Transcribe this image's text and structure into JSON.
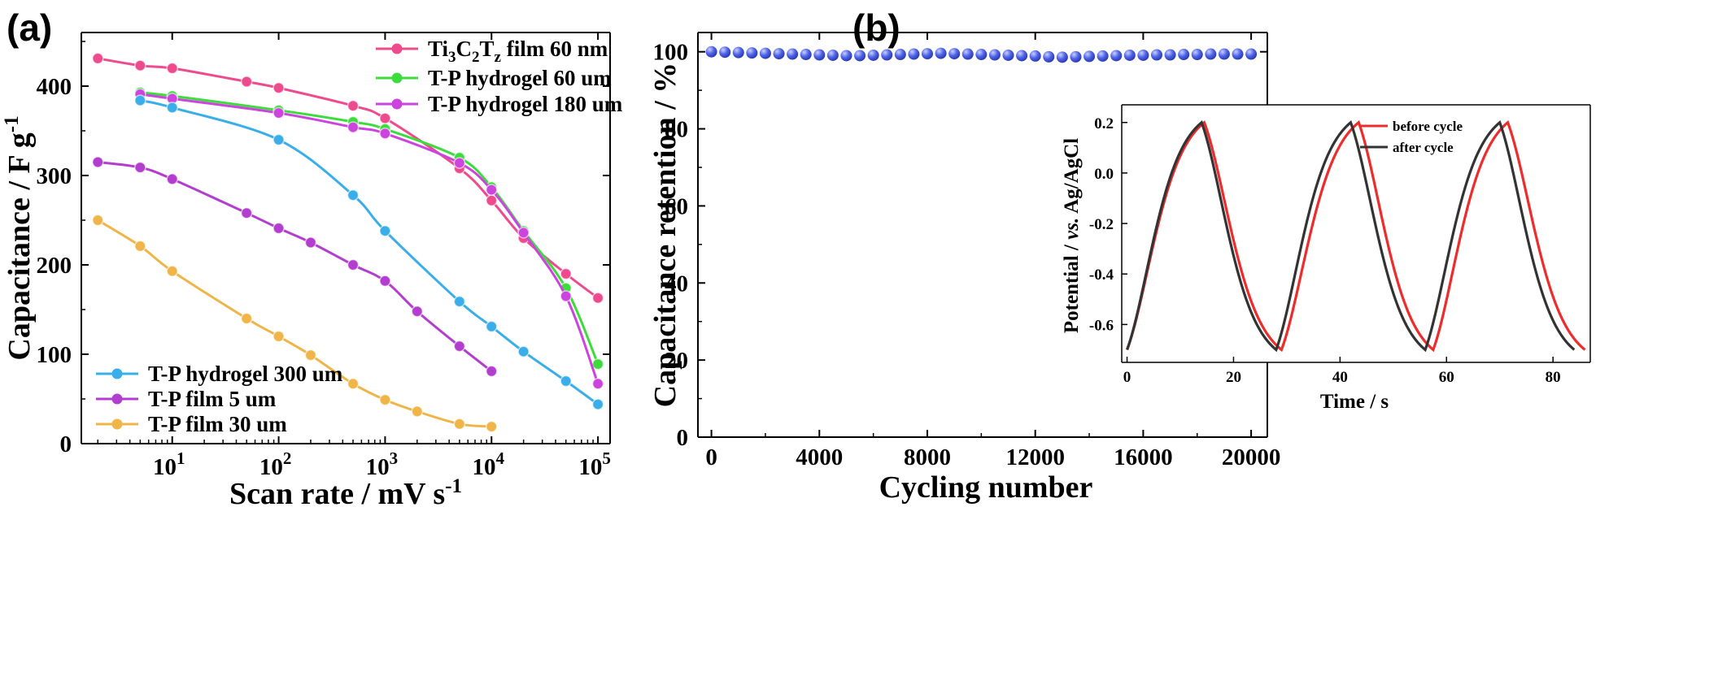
{
  "panels": {
    "a": {
      "label": "(a)"
    },
    "b": {
      "label": "(b)"
    }
  },
  "chart_data": [
    {
      "id": "a",
      "type": "line",
      "xscale": "log",
      "xlim": [
        1.4,
        130000
      ],
      "ylim": [
        0,
        460
      ],
      "xlabel": "Scan rate / mV s-1",
      "ylabel": "Capacitance / F g-1",
      "xtick_labels": [
        "10^1",
        "10^2",
        "10^3",
        "10^4",
        "10^5"
      ],
      "yticks": [
        0,
        100,
        200,
        300,
        400
      ],
      "series": [
        {
          "name": "Ti3C2Tz film 60 nm",
          "color": "#ee4b8e",
          "x": [
            2,
            5,
            10,
            50,
            100,
            500,
            1000,
            5000,
            10000,
            20000,
            50000,
            100000
          ],
          "y": [
            431,
            423,
            420,
            405,
            398,
            378,
            364,
            308,
            272,
            230,
            190,
            163
          ]
        },
        {
          "name": "T-P hydrogel 60 um",
          "color": "#3ddc3d",
          "x": [
            5,
            10,
            100,
            500,
            1000,
            5000,
            10000,
            20000,
            50000,
            100000
          ],
          "y": [
            393,
            389,
            373,
            360,
            352,
            320,
            287,
            238,
            174,
            89
          ]
        },
        {
          "name": "T-P hydrogel 180 um",
          "color": "#cc44dd",
          "x": [
            5,
            10,
            100,
            500,
            1000,
            5000,
            10000,
            20000,
            50000,
            100000
          ],
          "y": [
            391,
            386,
            370,
            354,
            347,
            314,
            284,
            236,
            165,
            67
          ]
        },
        {
          "name": "T-P hydrogel 300 um",
          "color": "#3aaee8",
          "x": [
            5,
            10,
            100,
            500,
            1000,
            5000,
            10000,
            20000,
            50000,
            100000
          ],
          "y": [
            384,
            376,
            340,
            278,
            238,
            159,
            131,
            103,
            70,
            44
          ]
        },
        {
          "name": "T-P film 5 um",
          "color": "#b23dcf",
          "x": [
            2,
            5,
            10,
            50,
            100,
            200,
            500,
            1000,
            2000,
            5000,
            10000
          ],
          "y": [
            315,
            309,
            296,
            258,
            241,
            225,
            200,
            182,
            148,
            109,
            81
          ]
        },
        {
          "name": "T-P film 30 um",
          "color": "#efb548",
          "x": [
            2,
            5,
            10,
            50,
            100,
            200,
            500,
            1000,
            2000,
            5000,
            10000
          ],
          "y": [
            250,
            221,
            193,
            140,
            120,
            99,
            67,
            49,
            36,
            22,
            19
          ]
        }
      ]
    },
    {
      "id": "b",
      "type": "scatter",
      "xlim": [
        -500,
        20600
      ],
      "ylim": [
        0,
        105
      ],
      "xlabel": "Cycling number",
      "ylabel": "Capacitance retention / %",
      "xticks": [
        0,
        4000,
        8000,
        12000,
        16000,
        20000
      ],
      "yticks": [
        0,
        20,
        40,
        60,
        80,
        100
      ],
      "series": [
        {
          "name": "Capacitance retention",
          "color": "#4f63e6",
          "x": [
            0,
            500,
            1000,
            1500,
            2000,
            2500,
            3000,
            3500,
            4000,
            4500,
            5000,
            5500,
            6000,
            6500,
            7000,
            7500,
            8000,
            8500,
            9000,
            9500,
            10000,
            10500,
            11000,
            11500,
            12000,
            12500,
            13000,
            13500,
            14000,
            14500,
            15000,
            15500,
            16000,
            16500,
            17000,
            17500,
            18000,
            18500,
            19000,
            19500,
            20000
          ],
          "y": [
            100,
            99.9,
            99.8,
            99.7,
            99.6,
            99.5,
            99.4,
            99.3,
            99.2,
            99.1,
            99.0,
            99.0,
            99.1,
            99.2,
            99.3,
            99.4,
            99.5,
            99.6,
            99.5,
            99.4,
            99.3,
            99.2,
            99.1,
            99.0,
            98.9,
            98.7,
            98.6,
            98.7,
            98.8,
            98.9,
            99.0,
            99.1,
            99.1,
            99.2,
            99.2,
            99.3,
            99.3,
            99.4,
            99.4,
            99.4,
            99.4
          ]
        }
      ],
      "inset": {
        "type": "line",
        "xlim": [
          -1,
          87
        ],
        "ylim": [
          -0.75,
          0.27
        ],
        "xlabel": "Time / s",
        "ylabel": "Potential / vs. Ag/AgCl",
        "xticks": [
          0,
          20,
          40,
          60,
          80
        ],
        "yticks": [
          0.2,
          0.0,
          -0.2,
          -0.4,
          -0.6
        ],
        "ytick_labels": [
          "0.2",
          "0.0",
          "-0.2",
          "-0.4",
          "-0.6"
        ],
        "potential_range": [
          -0.7,
          0.2
        ],
        "series": [
          {
            "name": "before cycle",
            "color": "#ee2c2c",
            "cycle_points": [
              0,
              14.5,
              29,
              43.5,
              57.5,
              71.5,
              86
            ]
          },
          {
            "name": "after cycle",
            "color": "#333333",
            "cycle_points": [
              0,
              14,
              28,
              42,
              56,
              70,
              84
            ]
          }
        ]
      }
    }
  ]
}
